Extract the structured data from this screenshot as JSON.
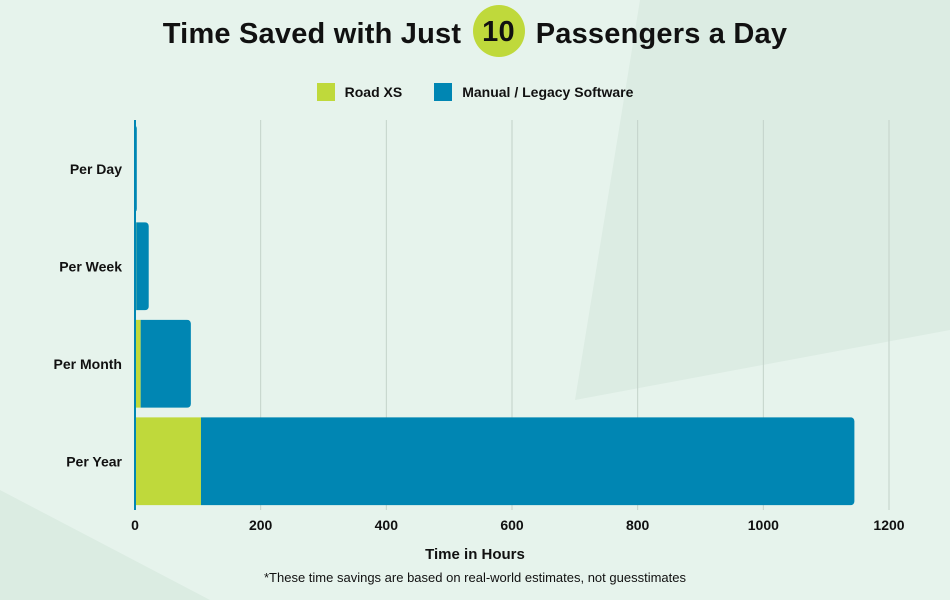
{
  "title": {
    "before": "Time Saved with Just",
    "highlight": "10",
    "after": "Passengers a Day"
  },
  "footnote": "*These time savings are based on real-world estimates, not guesstimates",
  "colors": {
    "road_xs": "#bfd93b",
    "manual": "#0086b3",
    "gridline": "#c3d2c9",
    "background": "#e6f3ec"
  },
  "chart_data": {
    "type": "bar",
    "orientation": "horizontal",
    "stacked": true,
    "categories": [
      "Per Day",
      "Per Week",
      "Per Month",
      "Per Year"
    ],
    "series": [
      {
        "name": "Road XS",
        "values": [
          0.3,
          2,
          9,
          105
        ]
      },
      {
        "name": "Manual / Legacy Software",
        "values": [
          2.7,
          20,
          80,
          1040
        ]
      }
    ],
    "xlabel": "Time in Hours",
    "ylabel": "",
    "xlim": [
      0,
      1200
    ],
    "xticks": [
      0,
      200,
      400,
      600,
      800,
      1000,
      1200
    ],
    "grid": true,
    "legend": "top-center"
  }
}
